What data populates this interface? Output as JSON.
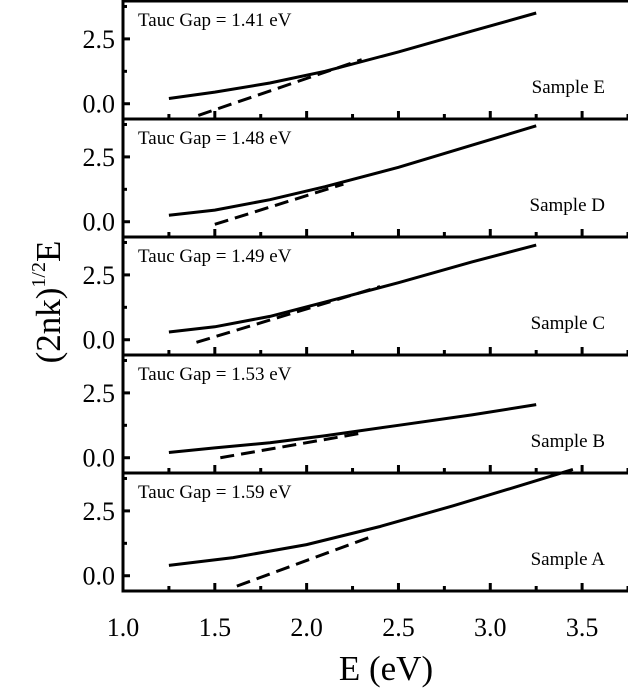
{
  "chart_data": {
    "type": "line",
    "xlabel": "E (eV)",
    "ylabel_base": "(2nk)",
    "ylabel_exp": "1/2",
    "ylabel_tail": "E",
    "xlim": [
      1.0,
      3.75
    ],
    "ylim": [
      -0.55,
      4.0
    ],
    "x_ticks": [
      "1.0",
      "1.5",
      "2.0",
      "2.5",
      "3.0",
      "3.5"
    ],
    "y_ticks": [
      "0.0",
      "2.5"
    ],
    "panels": [
      {
        "sample": "Sample E",
        "gap_label": "Tauc Gap = 1.41 eV",
        "curve": [
          [
            1.25,
            0.2
          ],
          [
            1.5,
            0.45
          ],
          [
            1.8,
            0.8
          ],
          [
            2.1,
            1.25
          ],
          [
            2.5,
            2.0
          ],
          [
            2.9,
            2.8
          ],
          [
            3.25,
            3.5
          ]
        ],
        "fit": [
          [
            1.41,
            -0.45
          ],
          [
            2.3,
            1.7
          ]
        ]
      },
      {
        "sample": "Sample D",
        "gap_label": "Tauc Gap = 1.48 eV",
        "curve": [
          [
            1.25,
            0.25
          ],
          [
            1.5,
            0.45
          ],
          [
            1.8,
            0.85
          ],
          [
            2.1,
            1.35
          ],
          [
            2.5,
            2.1
          ],
          [
            2.9,
            2.95
          ],
          [
            3.25,
            3.7
          ]
        ],
        "fit": [
          [
            1.5,
            -0.1
          ],
          [
            2.2,
            1.45
          ]
        ]
      },
      {
        "sample": "Sample C",
        "gap_label": "Tauc Gap = 1.49 eV",
        "curve": [
          [
            1.25,
            0.3
          ],
          [
            1.5,
            0.5
          ],
          [
            1.8,
            0.9
          ],
          [
            2.1,
            1.45
          ],
          [
            2.5,
            2.2
          ],
          [
            2.9,
            3.0
          ],
          [
            3.25,
            3.65
          ]
        ],
        "fit": [
          [
            1.4,
            -0.1
          ],
          [
            2.4,
            2.05
          ]
        ]
      },
      {
        "sample": "Sample B",
        "gap_label": "Tauc Gap = 1.53 eV",
        "curve": [
          [
            1.25,
            0.2
          ],
          [
            1.5,
            0.38
          ],
          [
            1.8,
            0.58
          ],
          [
            2.1,
            0.85
          ],
          [
            2.5,
            1.25
          ],
          [
            2.9,
            1.65
          ],
          [
            3.25,
            2.05
          ]
        ],
        "fit": [
          [
            1.53,
            0.0
          ],
          [
            2.3,
            0.95
          ]
        ]
      },
      {
        "sample": "Sample A",
        "gap_label": "Tauc Gap = 1.59 eV",
        "curve": [
          [
            1.25,
            0.4
          ],
          [
            1.6,
            0.7
          ],
          [
            2.0,
            1.2
          ],
          [
            2.4,
            1.9
          ],
          [
            2.8,
            2.7
          ],
          [
            3.15,
            3.45
          ],
          [
            3.45,
            4.1
          ]
        ],
        "fit": [
          [
            1.62,
            -0.4
          ],
          [
            2.35,
            1.5
          ]
        ]
      }
    ]
  }
}
